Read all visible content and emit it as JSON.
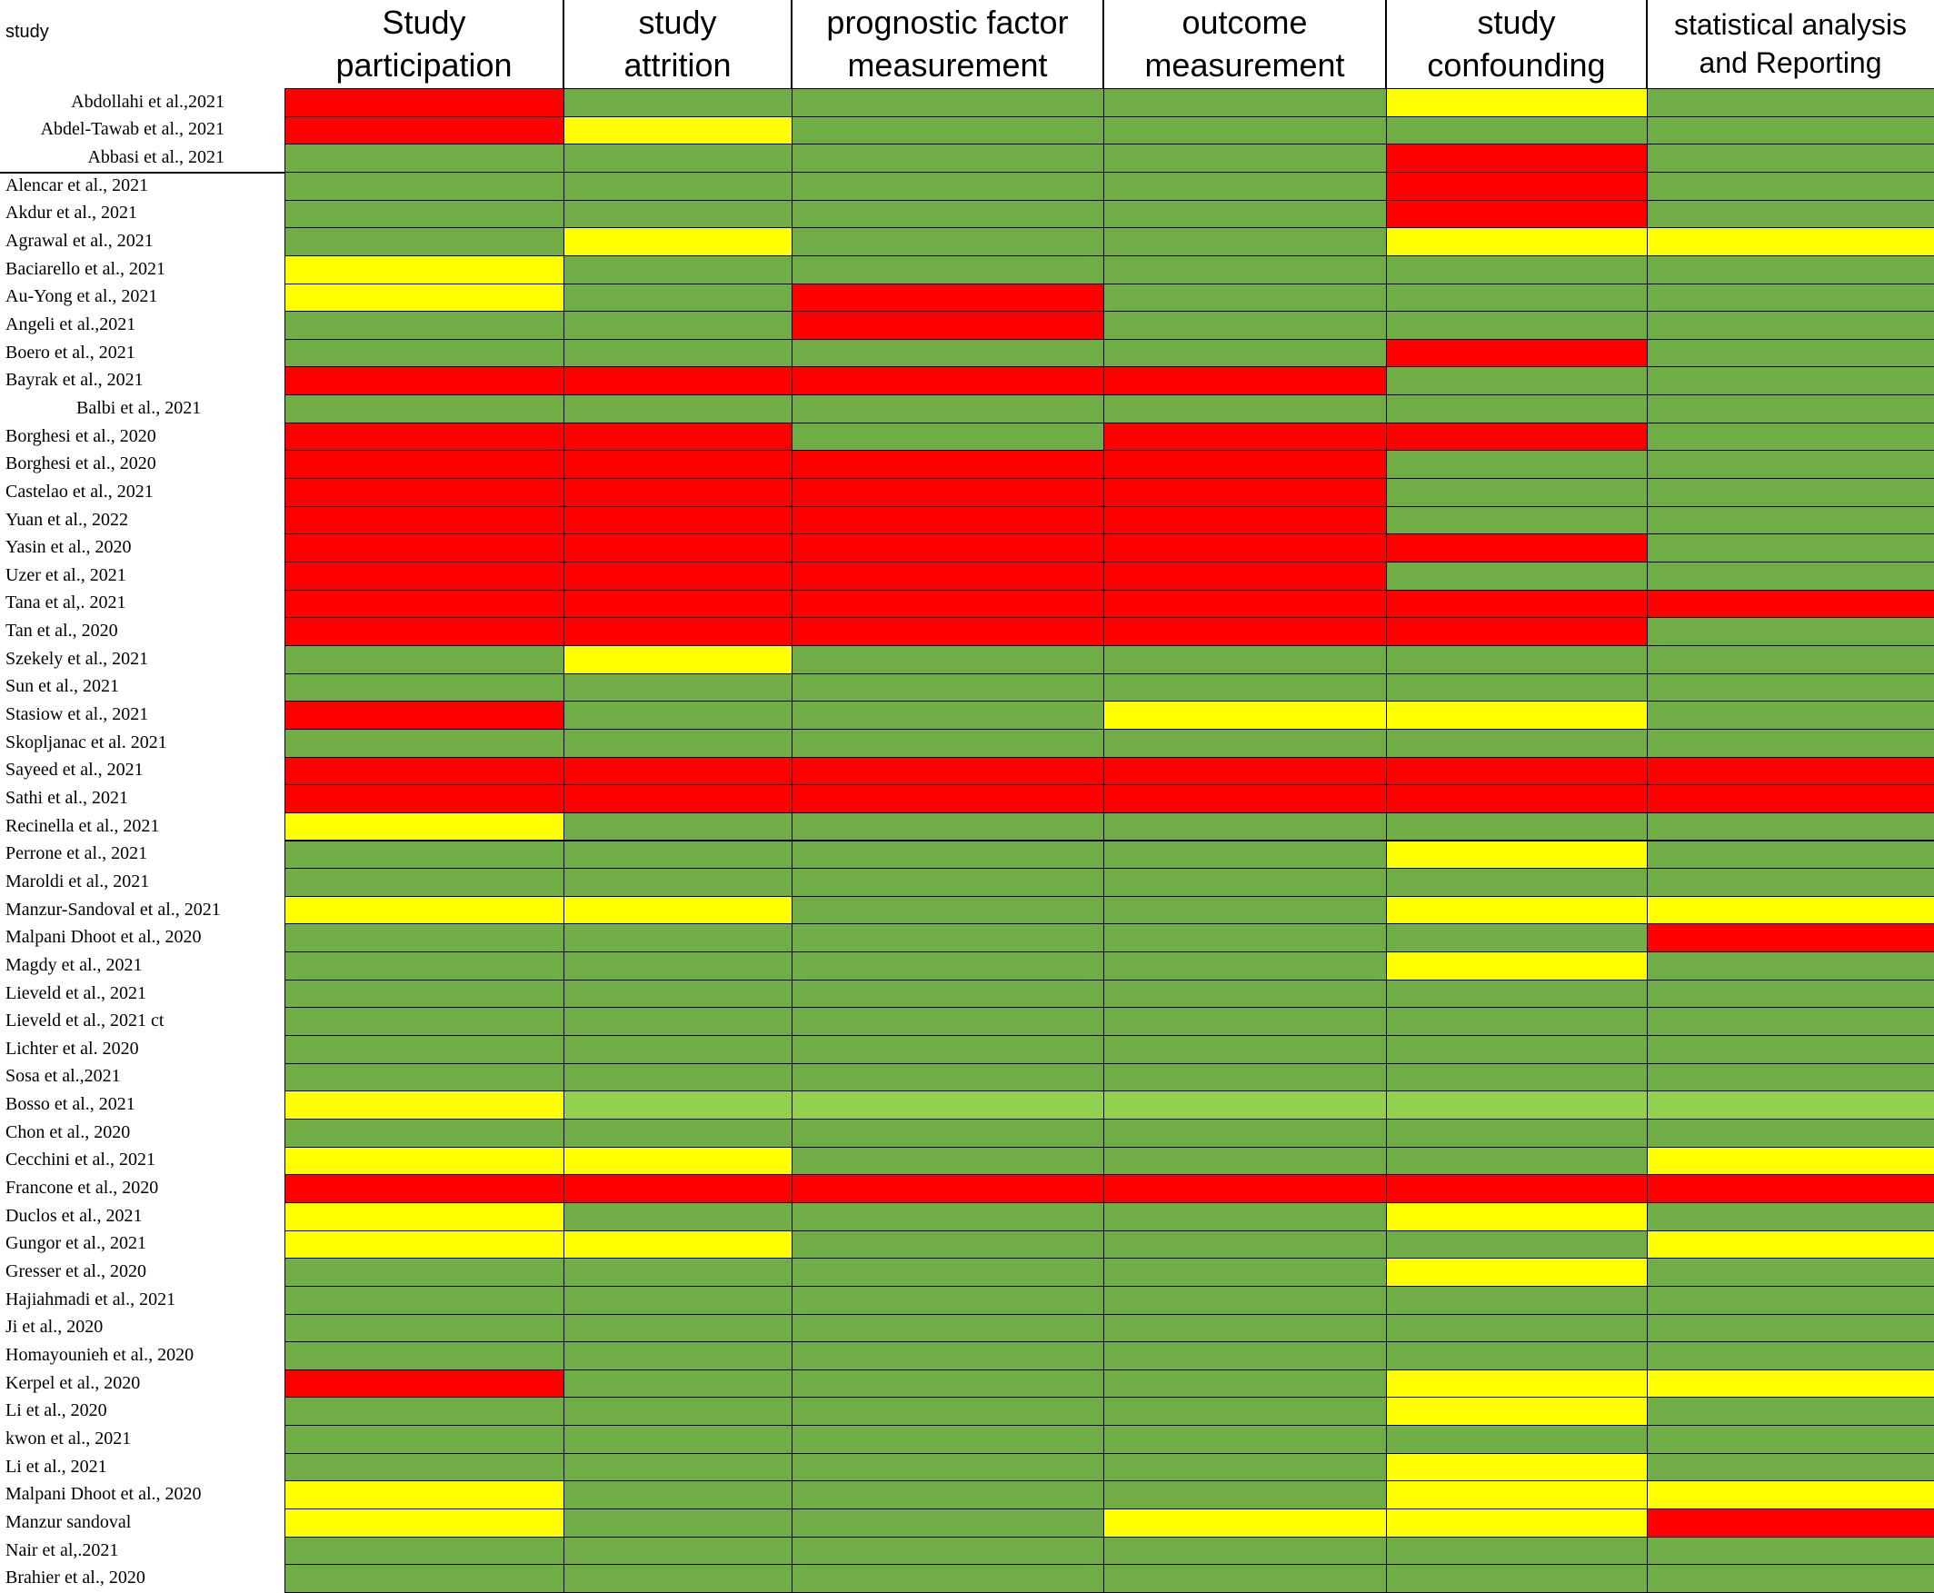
{
  "chart_data": {
    "type": "heatmap",
    "row_header": "study",
    "columns": [
      "Study\nparticipation",
      "study\nattrition",
      "prognostic factor\nmeasurement",
      "outcome\nmeasurement",
      "study\nconfounding",
      "statistical analysis\nand Reporting"
    ],
    "level_colors": {
      "G": "#70ad47",
      "Y": "#ffff00",
      "R": "#ff0000",
      "L": "#92d050"
    },
    "rows": [
      {
        "study": "Abdollahi et al.,2021",
        "ratings": [
          "R",
          "G",
          "G",
          "G",
          "Y",
          "G"
        ]
      },
      {
        "study": "Abdel-Tawab et al., 2021",
        "ratings": [
          "R",
          "Y",
          "G",
          "G",
          "G",
          "G"
        ]
      },
      {
        "study": "Abbasi et al., 2021",
        "ratings": [
          "G",
          "G",
          "G",
          "G",
          "R",
          "G"
        ]
      },
      {
        "study": "Alencar et al.,  2021",
        "ratings": [
          "G",
          "G",
          "G",
          "G",
          "R",
          "G"
        ]
      },
      {
        "study": "Akdur et al., 2021",
        "ratings": [
          "G",
          "G",
          "G",
          "G",
          "R",
          "G"
        ]
      },
      {
        "study": "Agrawal et al., 2021",
        "ratings": [
          "G",
          "Y",
          "G",
          "G",
          "Y",
          "Y"
        ]
      },
      {
        "study": "Baciarello et al., 2021",
        "ratings": [
          "Y",
          "G",
          "G",
          "G",
          "G",
          "G"
        ]
      },
      {
        "study": "Au-Yong et al., 2021",
        "ratings": [
          "Y",
          "G",
          "R",
          "G",
          "G",
          "G"
        ]
      },
      {
        "study": "Angeli et al.,2021",
        "ratings": [
          "G",
          "G",
          "R",
          "G",
          "G",
          "G"
        ]
      },
      {
        "study": "Boero et al., 2021",
        "ratings": [
          "G",
          "G",
          "G",
          "G",
          "R",
          "G"
        ]
      },
      {
        "study": "Bayrak et al., 2021",
        "ratings": [
          "R",
          "R",
          "R",
          "R",
          "G",
          "G"
        ]
      },
      {
        "study": "Balbi et al., 2021",
        "ratings": [
          "G",
          "G",
          "G",
          "G",
          "G",
          "G"
        ]
      },
      {
        "study": "Borghesi et al., 2020",
        "ratings": [
          "R",
          "R",
          "G",
          "R",
          "R",
          "G"
        ]
      },
      {
        "study": "Borghesi et al., 2020",
        "ratings": [
          "R",
          "R",
          "R",
          "R",
          "G",
          "G"
        ]
      },
      {
        "study": "Castelao et al., 2021",
        "ratings": [
          "R",
          "R",
          "R",
          "R",
          "G",
          "G"
        ]
      },
      {
        "study": "Yuan et al., 2022",
        "ratings": [
          "R",
          "R",
          "R",
          "R",
          "G",
          "G"
        ]
      },
      {
        "study": "Yasin et al., 2020",
        "ratings": [
          "R",
          "R",
          "R",
          "R",
          "R",
          "G"
        ]
      },
      {
        "study": "Uzer et al., 2021",
        "ratings": [
          "R",
          "R",
          "R",
          "R",
          "G",
          "G"
        ]
      },
      {
        "study": "Tana et al,. 2021",
        "ratings": [
          "R",
          "R",
          "R",
          "R",
          "R",
          "R"
        ]
      },
      {
        "study": "Tan et al., 2020",
        "ratings": [
          "R",
          "R",
          "R",
          "R",
          "R",
          "G"
        ]
      },
      {
        "study": "Szekely et al., 2021",
        "ratings": [
          "G",
          "Y",
          "G",
          "G",
          "G",
          "G"
        ]
      },
      {
        "study": "Sun et al., 2021",
        "ratings": [
          "G",
          "G",
          "G",
          "G",
          "G",
          "G"
        ]
      },
      {
        "study": "Stasiow et al., 2021",
        "ratings": [
          "R",
          "G",
          "G",
          "Y",
          "Y",
          "G"
        ]
      },
      {
        "study": "Skopljanac et al. 2021",
        "ratings": [
          "G",
          "G",
          "G",
          "G",
          "G",
          "G"
        ]
      },
      {
        "study": "Sayeed et al., 2021",
        "ratings": [
          "R",
          "R",
          "R",
          "R",
          "R",
          "R"
        ]
      },
      {
        "study": "Sathi et al., 2021",
        "ratings": [
          "R",
          "R",
          "R",
          "R",
          "R",
          "R"
        ]
      },
      {
        "study": "Recinella et al., 2021",
        "ratings": [
          "Y",
          "G",
          "G",
          "G",
          "G",
          "G"
        ]
      },
      {
        "study": "Perrone et al., 2021",
        "ratings": [
          "G",
          "G",
          "G",
          "G",
          "Y",
          "G"
        ]
      },
      {
        "study": "Maroldi et al., 2021",
        "ratings": [
          "G",
          "G",
          "G",
          "G",
          "G",
          "G"
        ]
      },
      {
        "study": "Manzur-Sandoval et al., 2021",
        "ratings": [
          "Y",
          "Y",
          "G",
          "G",
          "Y",
          "Y"
        ]
      },
      {
        "study": "Malpani Dhoot et al., 2020",
        "ratings": [
          "G",
          "G",
          "G",
          "G",
          "G",
          "R"
        ]
      },
      {
        "study": "Magdy et al., 2021",
        "ratings": [
          "G",
          "G",
          "G",
          "G",
          "Y",
          "G"
        ]
      },
      {
        "study": "Lieveld et al., 2021",
        "ratings": [
          "G",
          "G",
          "G",
          "G",
          "G",
          "G"
        ]
      },
      {
        "study": "Lieveld et al., 2021 ct",
        "ratings": [
          "G",
          "G",
          "G",
          "G",
          "G",
          "G"
        ]
      },
      {
        "study": "Lichter et al. 2020",
        "ratings": [
          "G",
          "G",
          "G",
          "G",
          "G",
          "G"
        ]
      },
      {
        "study": "Sosa et al.,2021",
        "ratings": [
          "G",
          "G",
          "G",
          "G",
          "G",
          "G"
        ]
      },
      {
        "study": "Bosso et al., 2021",
        "ratings": [
          "Y",
          "L",
          "L",
          "L",
          "L",
          "L"
        ]
      },
      {
        "study": "Chon et al., 2020",
        "ratings": [
          "G",
          "G",
          "G",
          "G",
          "G",
          "G"
        ]
      },
      {
        "study": "Cecchini et al., 2021",
        "ratings": [
          "Y",
          "Y",
          "G",
          "G",
          "G",
          "Y"
        ]
      },
      {
        "study": "Francone et al., 2020",
        "ratings": [
          "R",
          "R",
          "R",
          "R",
          "R",
          "R"
        ]
      },
      {
        "study": "Duclos et al., 2021",
        "ratings": [
          "Y",
          "G",
          "G",
          "G",
          "Y",
          "G"
        ]
      },
      {
        "study": "Gungor et al., 2021",
        "ratings": [
          "Y",
          "Y",
          "G",
          "G",
          "G",
          "Y"
        ]
      },
      {
        "study": "Gresser et al., 2020",
        "ratings": [
          "G",
          "G",
          "G",
          "G",
          "Y",
          "G"
        ]
      },
      {
        "study": "Hajiahmadi et al., 2021",
        "ratings": [
          "G",
          "G",
          "G",
          "G",
          "G",
          "G"
        ]
      },
      {
        "study": "Ji et al., 2020",
        "ratings": [
          "G",
          "G",
          "G",
          "G",
          "G",
          "G"
        ]
      },
      {
        "study": "Homayounieh et al., 2020",
        "ratings": [
          "G",
          "G",
          "G",
          "G",
          "G",
          "G"
        ]
      },
      {
        "study": "Kerpel et al., 2020",
        "ratings": [
          "R",
          "G",
          "G",
          "G",
          "Y",
          "Y"
        ]
      },
      {
        "study": "Li et al., 2020",
        "ratings": [
          "G",
          "G",
          "G",
          "G",
          "Y",
          "G"
        ]
      },
      {
        "study": "kwon et al., 2021",
        "ratings": [
          "G",
          "G",
          "G",
          "G",
          "G",
          "G"
        ]
      },
      {
        "study": "Li et al., 2021",
        "ratings": [
          "G",
          "G",
          "G",
          "G",
          "Y",
          "G"
        ]
      },
      {
        "study": "Malpani Dhoot et al., 2020",
        "ratings": [
          "Y",
          "G",
          "G",
          "G",
          "Y",
          "Y"
        ]
      },
      {
        "study": "Manzur sandoval",
        "ratings": [
          "Y",
          "G",
          "G",
          "Y",
          "Y",
          "R"
        ]
      },
      {
        "study": "Nair et al,.2021",
        "ratings": [
          "G",
          "G",
          "G",
          "G",
          "G",
          "G"
        ]
      },
      {
        "study": "Brahier et al., 2020",
        "ratings": [
          "G",
          "G",
          "G",
          "G",
          "G",
          "G"
        ]
      }
    ]
  }
}
